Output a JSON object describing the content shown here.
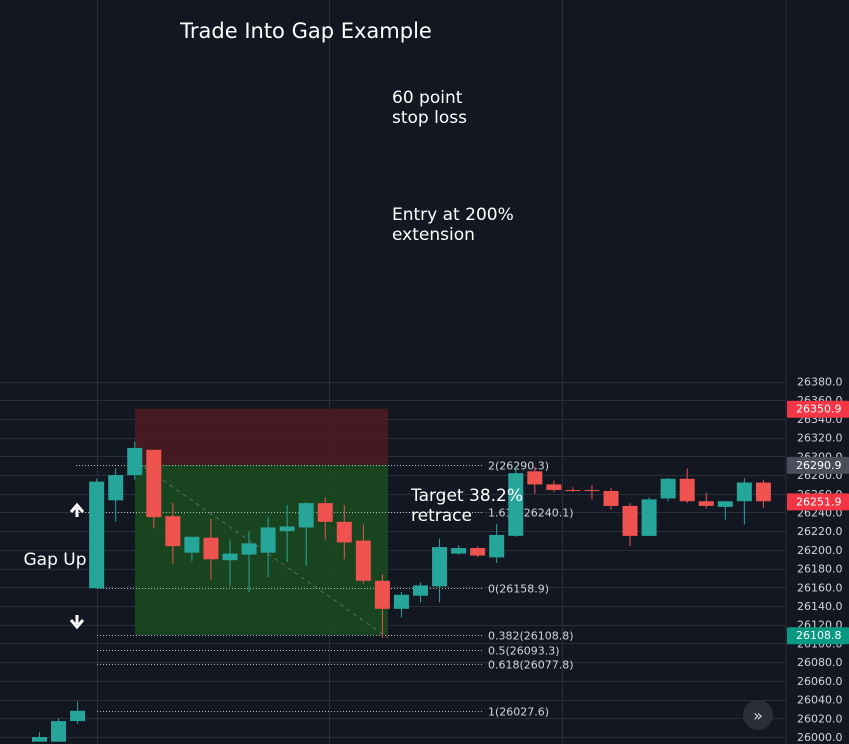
{
  "chart_data": {
    "type": "candlestick",
    "title": "Trade Into Gap Example",
    "ylim": [
      26000,
      26392
    ],
    "yticks": [
      26000.0,
      26020.0,
      26040.0,
      26060.0,
      26080.0,
      26100.0,
      26120.0,
      26140.0,
      26160.0,
      26180.0,
      26200.0,
      26220.0,
      26240.0,
      26260.0,
      26280.0,
      26300.0,
      26320.0,
      26340.0,
      26360.0,
      26380.0
    ],
    "grid": true,
    "colors": {
      "up": "#26a69a",
      "down": "#ef5350",
      "background": "#131722",
      "grid": "#2a2e39",
      "stop_zone": "#4a1a22",
      "target_zone": "#1a4a1f",
      "bull_tag": "#089981"
    },
    "candles": [
      {
        "o": 25995,
        "h": 26005,
        "l": 25995,
        "c": 26000
      },
      {
        "o": 25995,
        "h": 26020,
        "l": 25995,
        "c": 26017
      },
      {
        "o": 26017,
        "h": 26038,
        "l": 26014,
        "c": 26028
      },
      {
        "o": 26159,
        "h": 26276,
        "l": 26159,
        "c": 26273
      },
      {
        "o": 26253,
        "h": 26287,
        "l": 26230,
        "c": 26280
      },
      {
        "o": 26280,
        "h": 26316,
        "l": 26275,
        "c": 26309
      },
      {
        "o": 26307,
        "h": 26307,
        "l": 26223,
        "c": 26235
      },
      {
        "o": 26236,
        "h": 26250,
        "l": 26185,
        "c": 26204
      },
      {
        "o": 26197,
        "h": 26213,
        "l": 26188,
        "c": 26214
      },
      {
        "o": 26213,
        "h": 26233,
        "l": 26168,
        "c": 26190
      },
      {
        "o": 26189,
        "h": 26211,
        "l": 26161,
        "c": 26196
      },
      {
        "o": 26195,
        "h": 26220,
        "l": 26155,
        "c": 26207
      },
      {
        "o": 26197,
        "h": 26235,
        "l": 26171,
        "c": 26224
      },
      {
        "o": 26220,
        "h": 26248,
        "l": 26187,
        "c": 26225
      },
      {
        "o": 26224,
        "h": 26251,
        "l": 26183,
        "c": 26250
      },
      {
        "o": 26250,
        "h": 26256,
        "l": 26211,
        "c": 26230
      },
      {
        "o": 26230,
        "h": 26248,
        "l": 26190,
        "c": 26208
      },
      {
        "o": 26210,
        "h": 26227,
        "l": 26164,
        "c": 26167
      },
      {
        "o": 26167,
        "h": 26174,
        "l": 26106,
        "c": 26137
      },
      {
        "o": 26137,
        "h": 26155,
        "l": 26128,
        "c": 26152
      },
      {
        "o": 26151,
        "h": 26165,
        "l": 26144,
        "c": 26162
      },
      {
        "o": 26161,
        "h": 26212,
        "l": 26144,
        "c": 26203
      },
      {
        "o": 26196,
        "h": 26205,
        "l": 26195,
        "c": 26202
      },
      {
        "o": 26202,
        "h": 26204,
        "l": 26192,
        "c": 26194
      },
      {
        "o": 26192,
        "h": 26228,
        "l": 26186,
        "c": 26216
      },
      {
        "o": 26215,
        "h": 26289,
        "l": 26214,
        "c": 26282
      },
      {
        "o": 26284,
        "h": 26289,
        "l": 26260,
        "c": 26270
      },
      {
        "o": 26270,
        "h": 26274,
        "l": 26262,
        "c": 26264
      },
      {
        "o": 26264,
        "h": 26267,
        "l": 26262,
        "c": 26263
      },
      {
        "o": 26264,
        "h": 26269,
        "l": 26254,
        "c": 26263
      },
      {
        "o": 26263,
        "h": 26266,
        "l": 26243,
        "c": 26247
      },
      {
        "o": 26247,
        "h": 26250,
        "l": 26204,
        "c": 26215
      },
      {
        "o": 26215,
        "h": 26256,
        "l": 26215,
        "c": 26254
      },
      {
        "o": 26255,
        "h": 26277,
        "l": 26252,
        "c": 26276
      },
      {
        "o": 26276,
        "h": 26287,
        "l": 26250,
        "c": 26252
      },
      {
        "o": 26252,
        "h": 26261,
        "l": 26244,
        "c": 26247
      },
      {
        "o": 26246,
        "h": 26252,
        "l": 26232,
        "c": 26252
      },
      {
        "o": 26252,
        "h": 26277,
        "l": 26227,
        "c": 26272
      },
      {
        "o": 26272,
        "h": 26275,
        "l": 26245,
        "c": 26252
      }
    ],
    "fib_levels": [
      {
        "label": "2(26290.3)",
        "value": 26290.3
      },
      {
        "label": "1.618(26240.1)",
        "value": 26240.1
      },
      {
        "label": "0(26158.9)",
        "value": 26158.9
      },
      {
        "label": "0.382(26108.8)",
        "value": 26108.8
      },
      {
        "label": "0.5(26093.3)",
        "value": 26093.3
      },
      {
        "label": "0.618(26077.8)",
        "value": 26077.8
      },
      {
        "label": "1(26027.6)",
        "value": 26027.6
      }
    ],
    "price_tags": [
      {
        "label": "26350.9",
        "value": 26350.9,
        "color": "#f23645"
      },
      {
        "label": "26290.9",
        "value": 26290.9,
        "color": "#4a4e5a"
      },
      {
        "label": "26251.9",
        "value": 26251.9,
        "color": "#f23645"
      },
      {
        "label": "26108.8",
        "value": 26108.8,
        "color": "#089981"
      }
    ],
    "position": {
      "stop": 26350.9,
      "entry": 26290.9,
      "target": 26108.8
    },
    "annotations": {
      "stop": [
        "60 point",
        "stop loss"
      ],
      "entry": [
        "Entry at 200%",
        "extension"
      ],
      "target": [
        "Target 38.2%",
        "retrace"
      ],
      "gap": "Gap Up"
    }
  },
  "ui": {
    "scroll_button_icon": "double-chevron-right-icon",
    "scroll_button_glyph": "»"
  }
}
